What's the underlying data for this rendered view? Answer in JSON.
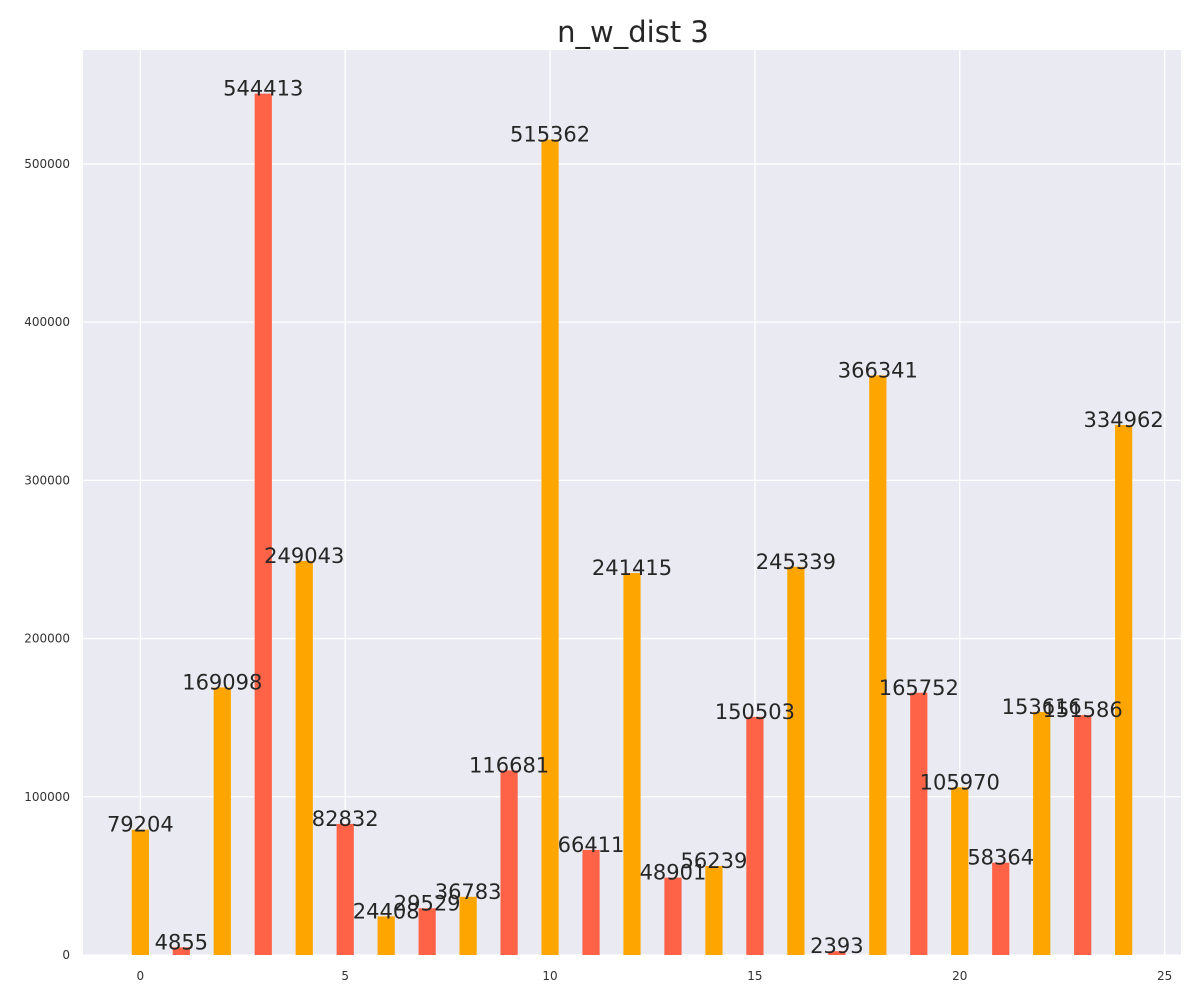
{
  "chart_data": {
    "type": "bar",
    "title": "n_w_dist 3",
    "xlabel": "",
    "ylabel": "",
    "x": [
      0,
      1,
      2,
      3,
      4,
      5,
      6,
      7,
      8,
      9,
      10,
      11,
      12,
      13,
      14,
      15,
      16,
      17,
      18,
      19,
      20,
      21,
      22,
      23,
      24
    ],
    "values": [
      79204,
      4855,
      169098,
      544413,
      249043,
      82832,
      24408,
      29529,
      36783,
      116681,
      515362,
      66411,
      241415,
      48901,
      56239,
      150503,
      245339,
      2393,
      366341,
      165752,
      105970,
      58364,
      153616,
      151586,
      334962
    ],
    "bar_labels": [
      "79204",
      "4855",
      "169098",
      "544413",
      "249043",
      "82832",
      "24408",
      "29529",
      "36783",
      "116681",
      "515362",
      "66411",
      "241415",
      "48901",
      "56239",
      "150503",
      "245339",
      "2393",
      "366341",
      "165752",
      "105970",
      "58364",
      "153616",
      "151586",
      "334962"
    ],
    "bar_colors": [
      "#FFA500",
      "#FF6347",
      "#FFA500",
      "#FF6347",
      "#FFA500",
      "#FF6347",
      "#FFA500",
      "#FF6347",
      "#FFA500",
      "#FF6347",
      "#FFA500",
      "#FF6347",
      "#FFA500",
      "#FF6347",
      "#FFA500",
      "#FF6347",
      "#FFA500",
      "#FF6347",
      "#FFA500",
      "#FF6347",
      "#FFA500",
      "#FF6347",
      "#FFA500",
      "#FF6347",
      "#FFA500"
    ],
    "xlim": [
      -1.4,
      25.4
    ],
    "ylim": [
      0,
      572000
    ],
    "x_ticks": [
      0,
      5,
      10,
      15,
      20,
      25
    ],
    "x_tick_labels": [
      "0",
      "5",
      "10",
      "15",
      "20",
      "25"
    ],
    "y_ticks": [
      0,
      100000,
      200000,
      300000,
      400000,
      500000
    ],
    "y_tick_labels": [
      "0",
      "100000",
      "200000",
      "300000",
      "400000",
      "500000"
    ],
    "grid": true,
    "background_color": "#EAEAF2",
    "grid_color": "#FFFFFF"
  }
}
